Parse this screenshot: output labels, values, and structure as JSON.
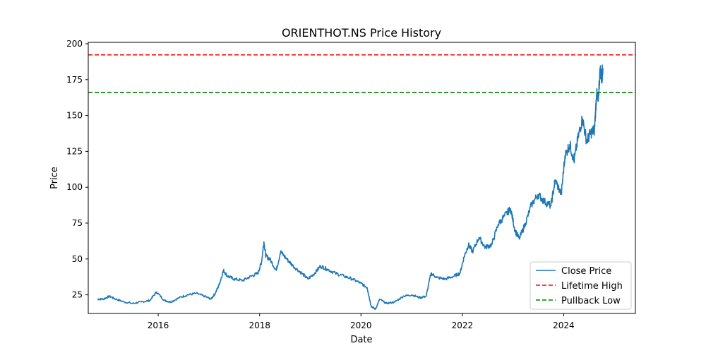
{
  "chart_data": {
    "type": "line",
    "title": "ORIENTHOT.NS Price History",
    "xlabel": "Date",
    "ylabel": "Price",
    "xlim": [
      "2014-08-15",
      "2025-06-01"
    ],
    "ylim": [
      12,
      201
    ],
    "x_ticks": [
      {
        "date": "2016-01-01",
        "label": "2016"
      },
      {
        "date": "2018-01-01",
        "label": "2018"
      },
      {
        "date": "2020-01-01",
        "label": "2020"
      },
      {
        "date": "2022-01-01",
        "label": "2022"
      },
      {
        "date": "2024-01-01",
        "label": "2024"
      }
    ],
    "y_ticks": [
      25,
      50,
      75,
      100,
      125,
      150,
      175,
      200
    ],
    "grid": false,
    "legend_position": "bottom-right",
    "series": [
      {
        "name": "Close Price",
        "color": "#1f77b4",
        "style": "solid",
        "points": [
          [
            "2014-10-20",
            22
          ],
          [
            "2014-12-01",
            22
          ],
          [
            "2015-01-15",
            24
          ],
          [
            "2015-03-01",
            22
          ],
          [
            "2015-05-01",
            20
          ],
          [
            "2015-07-01",
            19
          ],
          [
            "2015-09-01",
            20
          ],
          [
            "2015-11-01",
            21
          ],
          [
            "2015-12-20",
            27
          ],
          [
            "2016-02-15",
            21
          ],
          [
            "2016-04-01",
            20
          ],
          [
            "2016-06-01",
            23
          ],
          [
            "2016-08-01",
            25
          ],
          [
            "2016-10-01",
            26
          ],
          [
            "2016-12-01",
            24
          ],
          [
            "2017-01-15",
            22
          ],
          [
            "2017-02-15",
            26
          ],
          [
            "2017-03-15",
            32
          ],
          [
            "2017-04-15",
            42
          ],
          [
            "2017-05-15",
            38
          ],
          [
            "2017-07-01",
            36
          ],
          [
            "2017-09-01",
            35
          ],
          [
            "2017-11-01",
            38
          ],
          [
            "2017-12-20",
            40
          ],
          [
            "2018-01-15",
            48
          ],
          [
            "2018-02-01",
            62
          ],
          [
            "2018-02-15",
            52
          ],
          [
            "2018-03-15",
            50
          ],
          [
            "2018-05-01",
            42
          ],
          [
            "2018-06-01",
            55
          ],
          [
            "2018-07-15",
            50
          ],
          [
            "2018-09-01",
            45
          ],
          [
            "2018-11-01",
            40
          ],
          [
            "2018-12-15",
            36
          ],
          [
            "2019-02-01",
            40
          ],
          [
            "2019-03-15",
            45
          ],
          [
            "2019-05-01",
            43
          ],
          [
            "2019-07-01",
            40
          ],
          [
            "2019-09-01",
            38
          ],
          [
            "2019-11-01",
            36
          ],
          [
            "2020-01-01",
            33
          ],
          [
            "2020-02-15",
            30
          ],
          [
            "2020-03-15",
            17
          ],
          [
            "2020-04-15",
            15
          ],
          [
            "2020-05-15",
            22
          ],
          [
            "2020-07-01",
            19
          ],
          [
            "2020-09-01",
            20
          ],
          [
            "2020-11-01",
            24
          ],
          [
            "2021-01-01",
            25
          ],
          [
            "2021-03-01",
            23
          ],
          [
            "2021-04-15",
            24
          ],
          [
            "2021-05-20",
            40
          ],
          [
            "2021-07-01",
            37
          ],
          [
            "2021-09-01",
            36
          ],
          [
            "2021-11-01",
            38
          ],
          [
            "2021-12-15",
            40
          ],
          [
            "2022-01-15",
            52
          ],
          [
            "2022-02-15",
            60
          ],
          [
            "2022-03-15",
            55
          ],
          [
            "2022-05-01",
            65
          ],
          [
            "2022-06-15",
            58
          ],
          [
            "2022-08-01",
            60
          ],
          [
            "2022-09-15",
            74
          ],
          [
            "2022-11-01",
            80
          ],
          [
            "2022-12-15",
            85
          ],
          [
            "2023-01-15",
            70
          ],
          [
            "2023-02-15",
            64
          ],
          [
            "2023-04-01",
            75
          ],
          [
            "2023-05-15",
            88
          ],
          [
            "2023-07-01",
            95
          ],
          [
            "2023-08-15",
            90
          ],
          [
            "2023-10-01",
            87
          ],
          [
            "2023-11-01",
            105
          ],
          [
            "2023-12-15",
            95
          ],
          [
            "2024-01-10",
            122
          ],
          [
            "2024-02-15",
            130
          ],
          [
            "2024-03-15",
            118
          ],
          [
            "2024-04-15",
            135
          ],
          [
            "2024-05-15",
            148
          ],
          [
            "2024-06-15",
            132
          ],
          [
            "2024-07-15",
            138
          ],
          [
            "2024-08-10",
            140
          ],
          [
            "2024-08-25",
            165
          ],
          [
            "2024-09-05",
            160
          ],
          [
            "2024-09-20",
            182
          ],
          [
            "2024-10-01",
            176
          ],
          [
            "2024-10-10",
            183
          ]
        ]
      },
      {
        "name": "Lifetime High",
        "color": "#ff0000",
        "style": "dashed",
        "y": 192.3
      },
      {
        "name": "Pullback Low",
        "color": "#008000",
        "style": "dashed",
        "y": 166
      }
    ]
  }
}
